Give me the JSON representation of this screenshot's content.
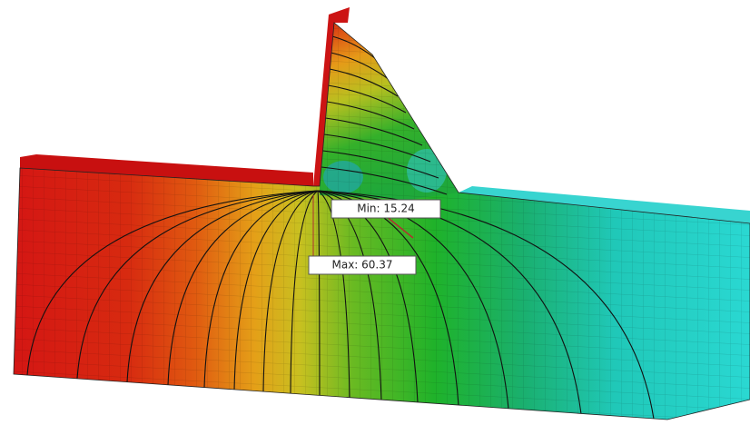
{
  "labels": {
    "min": "Min: 15.24",
    "max": "Max: 60.37"
  }
}
